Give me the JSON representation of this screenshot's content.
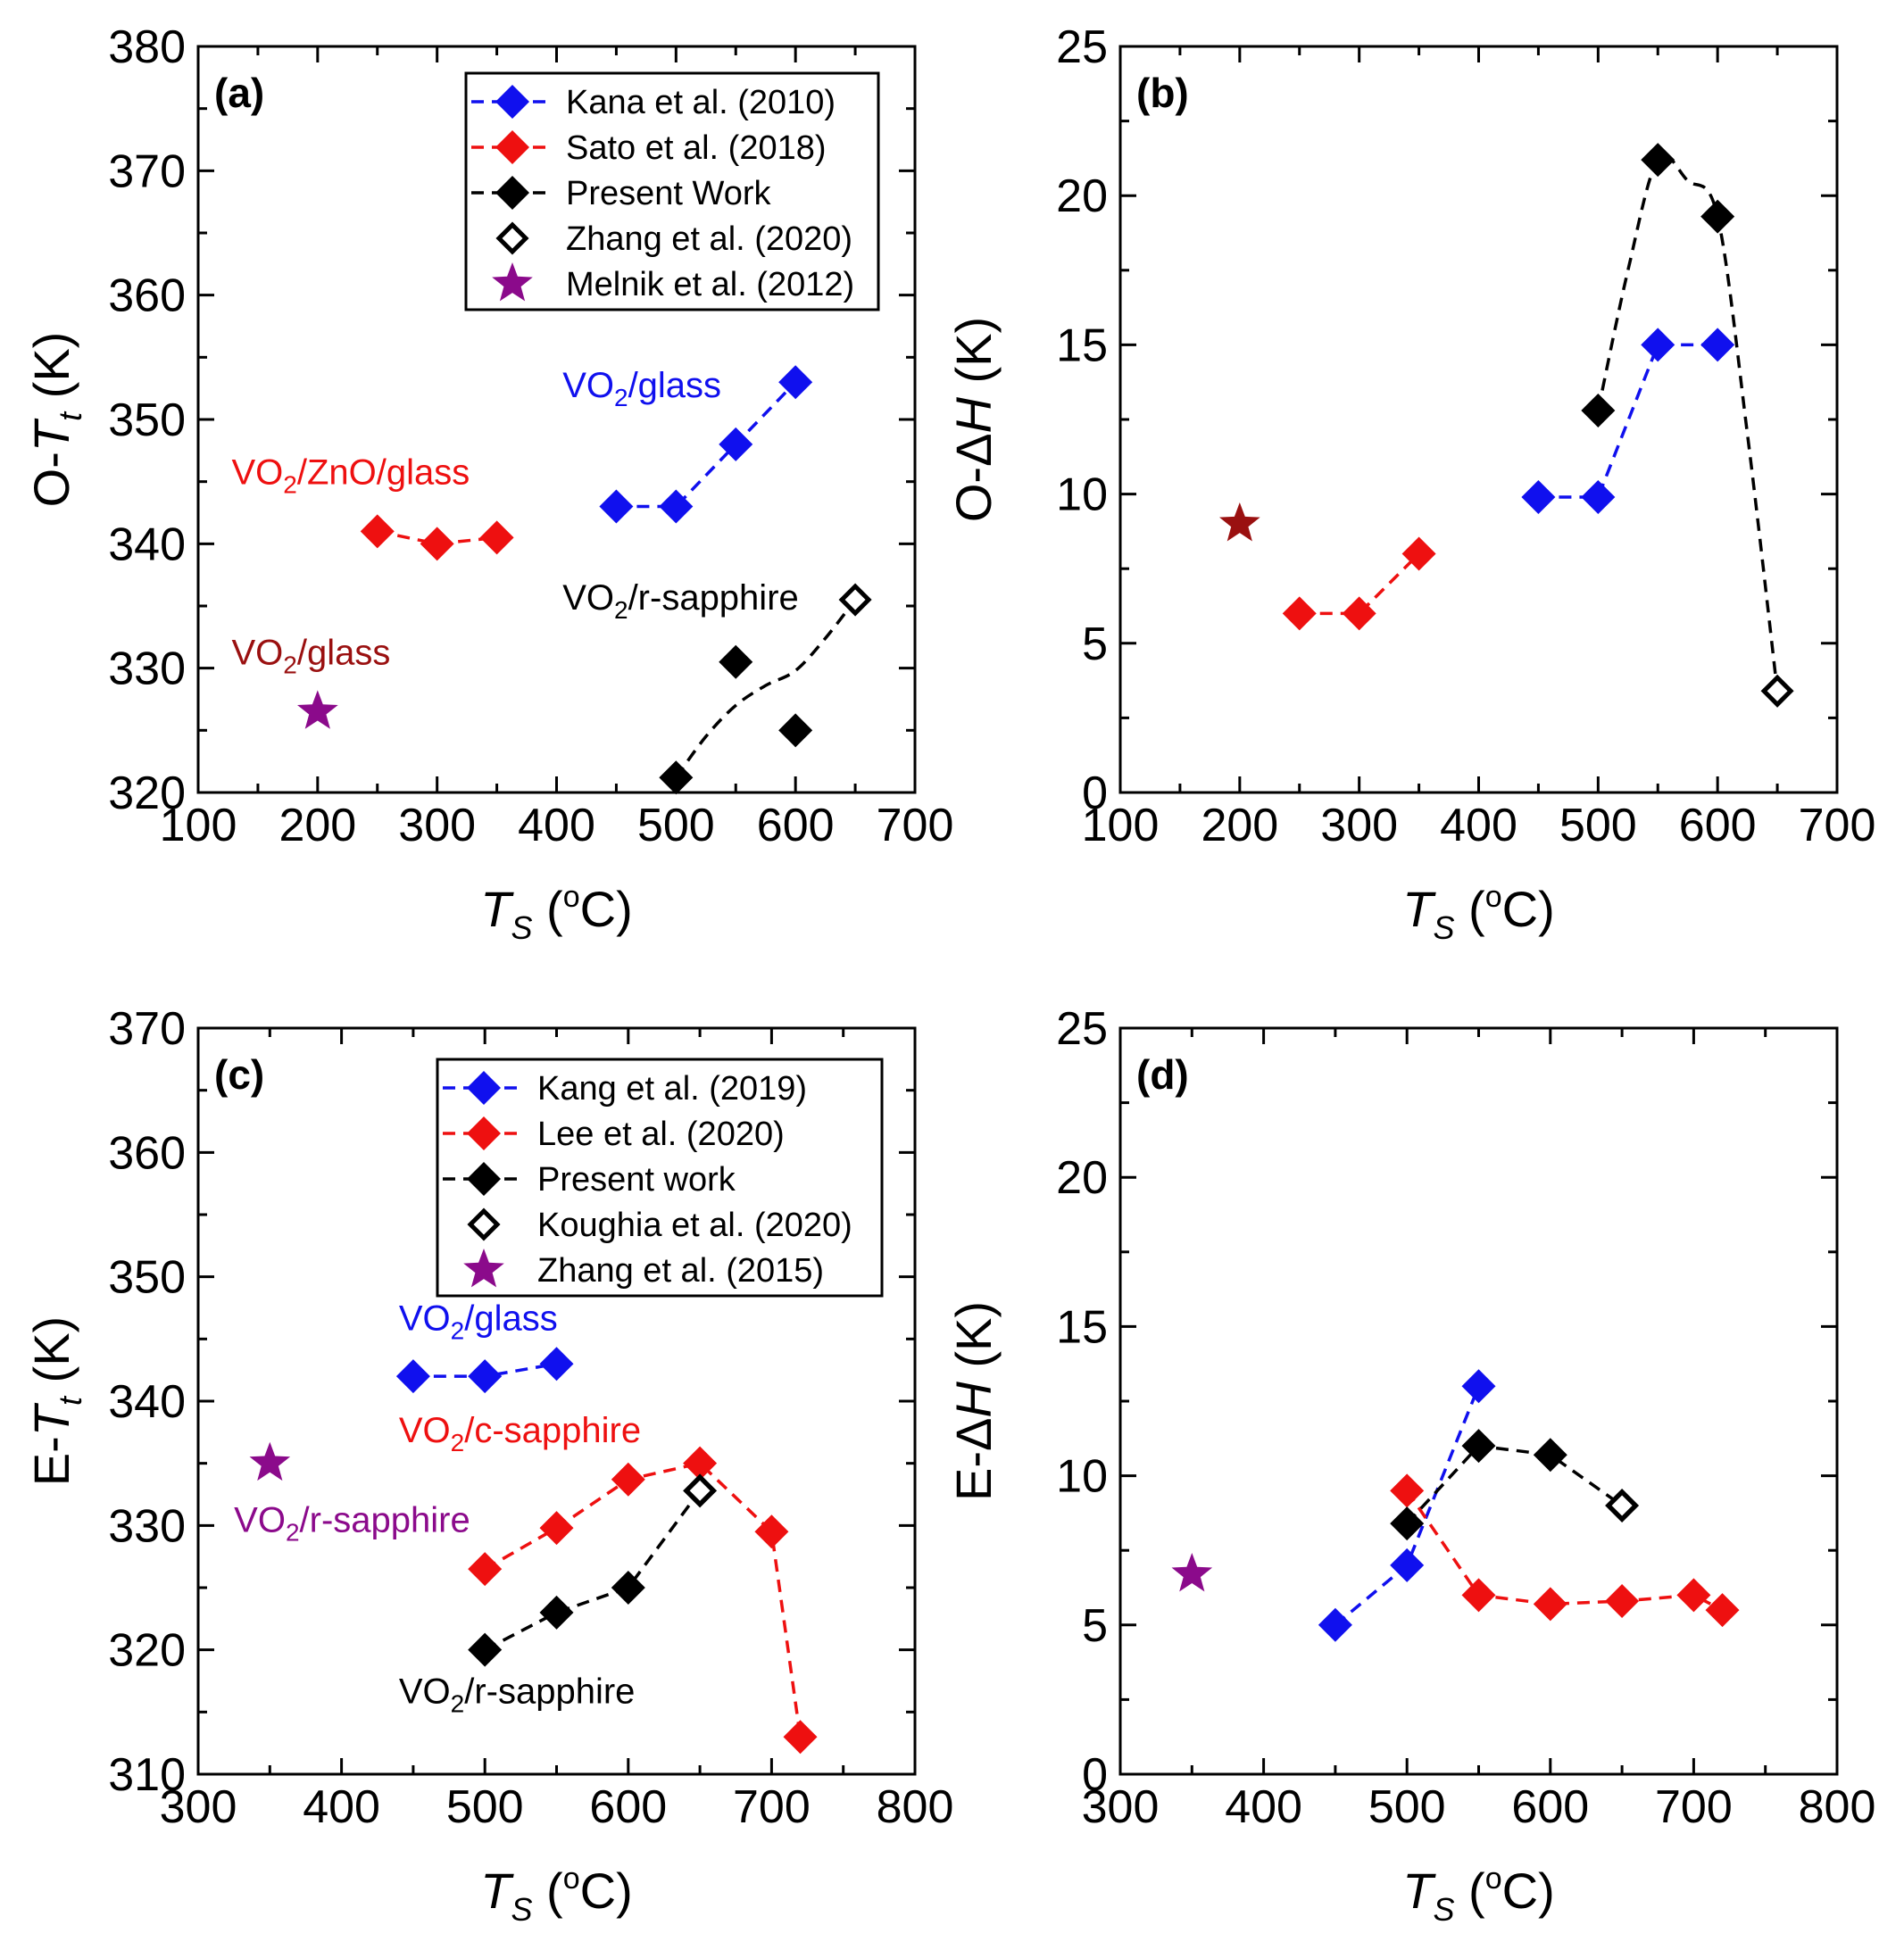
{
  "chart_data": [
    {
      "panel": "(a)",
      "type": "scatter",
      "xlim": [
        100,
        700
      ],
      "ylim": [
        320,
        380
      ],
      "xticks": [
        100,
        200,
        300,
        400,
        500,
        600,
        700
      ],
      "yticks": [
        320,
        330,
        340,
        350,
        360,
        370,
        380
      ],
      "ylabel": {
        "pre": "O-",
        "var": "T",
        "sub": "t",
        "post": " (K)"
      },
      "xlabel": {
        "pre": "",
        "var": "T",
        "sub": "S",
        "post": " (",
        "sup": "o",
        "post2": "C)"
      },
      "legend": [
        "Kana et al. (2010)",
        "Sato et al. (2018)",
        "Present Work",
        "Zhang et al. (2020)",
        "Melnik et al. (2012)"
      ],
      "series": [
        {
          "name": "Kana et al. (2010)",
          "color": "#1010ee",
          "marker": "diamond",
          "line": "dash",
          "x": [
            450,
            500,
            550,
            600
          ],
          "y": [
            343,
            343,
            348,
            353
          ]
        },
        {
          "name": "Sato et al. (2018)",
          "color": "#ee1010",
          "marker": "diamond",
          "line": "dash",
          "x": [
            250,
            300,
            350
          ],
          "y": [
            341,
            340,
            340.5
          ]
        },
        {
          "name": "Present Work",
          "color": "#000000",
          "marker": "diamond",
          "line": "none",
          "x": [
            500,
            550,
            600
          ],
          "y": [
            321.2,
            330.5,
            325
          ]
        },
        {
          "name": "Zhang et al. (2020)",
          "color": "#000000",
          "marker": "open-diamond",
          "line": "none",
          "x": [
            650
          ],
          "y": [
            335.5
          ]
        },
        {
          "name": "Melnik et al. (2012)",
          "color": "#8b0a8b",
          "marker": "star",
          "line": "none",
          "x": [
            200
          ],
          "y": [
            326.5
          ]
        }
      ],
      "curve": {
        "color": "#000000",
        "x": [
          500,
          525,
          550,
          575,
          600,
          625,
          650
        ],
        "y": [
          321.2,
          324.5,
          327,
          328.6,
          329.8,
          332.4,
          335.5
        ]
      },
      "annotations": [
        {
          "base": "VO",
          "sub": "2",
          "rest": "/glass",
          "color": "#1010ee",
          "x": 405,
          "y": 351.8
        },
        {
          "base": "VO",
          "sub": "2",
          "rest": "/ZnO/glass",
          "color": "#ee1010",
          "x": 128,
          "y": 344.8
        },
        {
          "base": "VO",
          "sub": "2",
          "rest": "/r-sapphire",
          "color": "#000000",
          "x": 405,
          "y": 334.7
        },
        {
          "base": "VO",
          "sub": "2",
          "rest": "/glass",
          "color": "#9a1010",
          "x": 128,
          "y": 330.3
        }
      ]
    },
    {
      "panel": "(b)",
      "type": "scatter",
      "xlim": [
        100,
        700
      ],
      "ylim": [
        0,
        25
      ],
      "xticks": [
        100,
        200,
        300,
        400,
        500,
        600,
        700
      ],
      "yticks": [
        0,
        5,
        10,
        15,
        20,
        25
      ],
      "ylabel": {
        "pre": "O-Δ",
        "var": "H",
        "sub": "",
        "post": " (K)"
      },
      "xlabel": {
        "pre": "",
        "var": "T",
        "sub": "S",
        "post": " (",
        "sup": "o",
        "post2": "C)"
      },
      "series": [
        {
          "name": "Kana et al. (2010)",
          "color": "#1010ee",
          "marker": "diamond",
          "line": "dash",
          "x": [
            450,
            500,
            550,
            600
          ],
          "y": [
            9.9,
            9.9,
            15,
            15
          ]
        },
        {
          "name": "Sato et al. (2018)",
          "color": "#ee1010",
          "marker": "diamond",
          "line": "dash",
          "x": [
            250,
            300,
            350
          ],
          "y": [
            6,
            6,
            8
          ]
        },
        {
          "name": "Present Work",
          "color": "#000000",
          "marker": "diamond",
          "line": "none",
          "x": [
            500,
            550,
            600
          ],
          "y": [
            12.8,
            21.2,
            19.3
          ]
        },
        {
          "name": "Zhang et al. (2020)",
          "color": "#000000",
          "marker": "open-diamond",
          "line": "none",
          "x": [
            650
          ],
          "y": [
            3.4
          ]
        },
        {
          "name": "Melnik et al. (2012)",
          "color": "#9a1010",
          "marker": "star",
          "line": "none",
          "x": [
            200
          ],
          "y": [
            9
          ]
        }
      ],
      "curve": {
        "color": "#000000",
        "x": [
          500,
          525,
          550,
          575,
          600,
          625,
          650
        ],
        "y": [
          12.8,
          17.5,
          21.2,
          20.5,
          19.3,
          12,
          3.4
        ]
      }
    },
    {
      "panel": "(c)",
      "type": "scatter",
      "xlim": [
        300,
        800
      ],
      "ylim": [
        310,
        370
      ],
      "xticks": [
        300,
        400,
        500,
        600,
        700,
        800
      ],
      "yticks": [
        310,
        320,
        330,
        340,
        350,
        360,
        370
      ],
      "ylabel": {
        "pre": "E-",
        "var": "T",
        "sub": "t",
        "post": " (K)"
      },
      "xlabel": {
        "pre": "",
        "var": "T",
        "sub": "S",
        "post": " (",
        "sup": "o",
        "post2": "C)"
      },
      "legend": [
        "Kang et al. (2019)",
        "Lee et al. (2020)",
        "Present work",
        "Koughia et al. (2020)",
        "Zhang et al. (2015)"
      ],
      "series": [
        {
          "name": "Kang et al. (2019)",
          "color": "#1010ee",
          "marker": "diamond",
          "line": "dash",
          "x": [
            450,
            500,
            550
          ],
          "y": [
            342,
            342,
            343
          ]
        },
        {
          "name": "Lee et al. (2020)",
          "color": "#ee1010",
          "marker": "diamond",
          "line": "dash",
          "x": [
            500,
            550,
            600,
            650,
            700,
            720
          ],
          "y": [
            326.5,
            329.8,
            333.7,
            335,
            329.5,
            313
          ]
        },
        {
          "name": "Present work",
          "color": "#000000",
          "marker": "diamond",
          "line": "dash",
          "x": [
            500,
            550,
            600,
            650
          ],
          "y": [
            320,
            323,
            325,
            332.8
          ]
        },
        {
          "name": "Koughia et al. (2020)",
          "color": "#000000",
          "marker": "open-diamond",
          "line": "none",
          "x": [
            650
          ],
          "y": [
            332.8
          ]
        },
        {
          "name": "Zhang et al. (2015)",
          "color": "#8b0a8b",
          "marker": "star",
          "line": "none",
          "x": [
            350
          ],
          "y": [
            335
          ]
        }
      ],
      "annotations": [
        {
          "base": "VO",
          "sub": "2",
          "rest": "/glass",
          "color": "#1010ee",
          "x": 440,
          "y": 345.7
        },
        {
          "base": "VO",
          "sub": "2",
          "rest": "/c-sapphire",
          "color": "#ee1010",
          "x": 440,
          "y": 336.7
        },
        {
          "base": "VO",
          "sub": "2",
          "rest": "/r-sapphire",
          "color": "#8b0a8b",
          "x": 325,
          "y": 329.5
        },
        {
          "base": "VO",
          "sub": "2",
          "rest": "/r-sapphire",
          "color": "#000000",
          "x": 440,
          "y": 315.7
        }
      ]
    },
    {
      "panel": "(d)",
      "type": "scatter",
      "xlim": [
        300,
        800
      ],
      "ylim": [
        0,
        25
      ],
      "xticks": [
        300,
        400,
        500,
        600,
        700,
        800
      ],
      "yticks": [
        0,
        5,
        10,
        15,
        20,
        25
      ],
      "ylabel": {
        "pre": "E-Δ",
        "var": "H",
        "sub": "",
        "post": " (K)"
      },
      "xlabel": {
        "pre": "",
        "var": "T",
        "sub": "S",
        "post": " (",
        "sup": "o",
        "post2": "C)"
      },
      "series": [
        {
          "name": "Kang et al. (2019)",
          "color": "#1010ee",
          "marker": "diamond",
          "line": "dash",
          "x": [
            450,
            500,
            550
          ],
          "y": [
            5,
            7,
            13
          ]
        },
        {
          "name": "Lee et al. (2020)",
          "color": "#ee1010",
          "marker": "diamond",
          "line": "dash",
          "x": [
            500,
            550,
            600,
            650,
            700,
            720
          ],
          "y": [
            9.5,
            6,
            5.7,
            5.8,
            6,
            5.5
          ]
        },
        {
          "name": "Present work",
          "color": "#000000",
          "marker": "diamond",
          "line": "dash",
          "x": [
            500,
            550,
            600,
            650
          ],
          "y": [
            8.4,
            11,
            10.7,
            9
          ]
        },
        {
          "name": "Koughia et al. (2020)",
          "color": "#000000",
          "marker": "open-diamond",
          "line": "none",
          "x": [
            650
          ],
          "y": [
            9
          ]
        },
        {
          "name": "Zhang et al. (2015)",
          "color": "#8b0a8b",
          "marker": "star",
          "line": "none",
          "x": [
            350
          ],
          "y": [
            6.7
          ]
        }
      ]
    }
  ]
}
